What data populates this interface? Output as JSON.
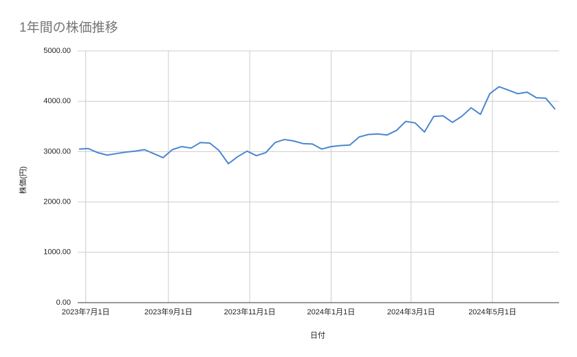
{
  "chart_data": {
    "type": "line",
    "title": "1年間の株価推移",
    "x_label": "日付",
    "y_label": "株価(円)",
    "color": "#4a86cf",
    "grid": true,
    "x": [
      "2023-06-26",
      "2023-07-03",
      "2023-07-10",
      "2023-07-17",
      "2023-07-24",
      "2023-07-31",
      "2023-08-07",
      "2023-08-14",
      "2023-08-21",
      "2023-08-28",
      "2023-09-04",
      "2023-09-11",
      "2023-09-18",
      "2023-09-25",
      "2023-10-02",
      "2023-10-09",
      "2023-10-16",
      "2023-10-23",
      "2023-10-30",
      "2023-11-06",
      "2023-11-13",
      "2023-11-20",
      "2023-11-27",
      "2023-12-04",
      "2023-12-11",
      "2023-12-18",
      "2023-12-25",
      "2024-01-01",
      "2024-01-08",
      "2024-01-15",
      "2024-01-22",
      "2024-01-29",
      "2024-02-05",
      "2024-02-12",
      "2024-02-19",
      "2024-02-26",
      "2024-03-04",
      "2024-03-11",
      "2024-03-18",
      "2024-03-25",
      "2024-04-01",
      "2024-04-08",
      "2024-04-15",
      "2024-04-22",
      "2024-04-29",
      "2024-05-06",
      "2024-05-13",
      "2024-05-20",
      "2024-05-27",
      "2024-06-03",
      "2024-06-10",
      "2024-06-17"
    ],
    "values": [
      3050,
      3060,
      2980,
      2930,
      2960,
      2990,
      3010,
      3040,
      2960,
      2880,
      3040,
      3100,
      3070,
      3180,
      3170,
      3020,
      2760,
      2900,
      3010,
      2920,
      2980,
      3180,
      3240,
      3210,
      3160,
      3150,
      3050,
      3100,
      3120,
      3130,
      3290,
      3340,
      3350,
      3330,
      3420,
      3600,
      3570,
      3390,
      3700,
      3710,
      3580,
      3700,
      3870,
      3740,
      4150,
      4290,
      4220,
      4150,
      4180,
      4070,
      4060,
      3840
    ],
    "xlim": [
      "2023-06-25",
      "2024-06-20"
    ],
    "xticks": [
      {
        "value": "2023-07-01",
        "label": "2023年7月1日"
      },
      {
        "value": "2023-09-01",
        "label": "2023年9月1日"
      },
      {
        "value": "2023-11-01",
        "label": "2023年11月1日"
      },
      {
        "value": "2024-01-01",
        "label": "2024年1月1日"
      },
      {
        "value": "2024-03-01",
        "label": "2024年3月1日"
      },
      {
        "value": "2024-05-01",
        "label": "2024年5月1日"
      }
    ],
    "ylim": [
      0,
      5000
    ],
    "yticks": [
      {
        "value": 0,
        "label": "0.00"
      },
      {
        "value": 1000,
        "label": "1000.00"
      },
      {
        "value": 2000,
        "label": "2000.00"
      },
      {
        "value": 3000,
        "label": "3000.00"
      },
      {
        "value": 4000,
        "label": "4000.00"
      },
      {
        "value": 5000,
        "label": "5000.00"
      }
    ]
  }
}
